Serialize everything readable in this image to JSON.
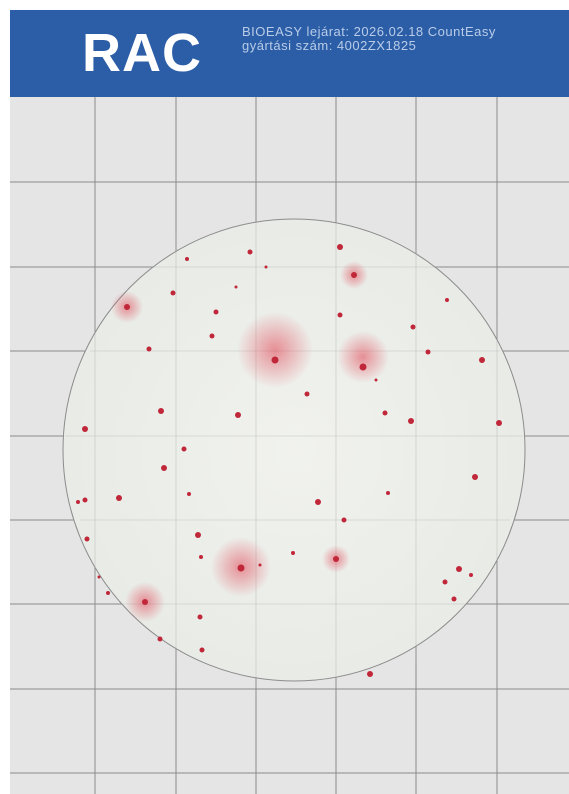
{
  "header": {
    "title": "RAC",
    "info_line1": "BIOEASY lejárat: 2026.02.18 CountEasy",
    "info_line2": "gyártási szám: 4002ZX1825"
  }
}
